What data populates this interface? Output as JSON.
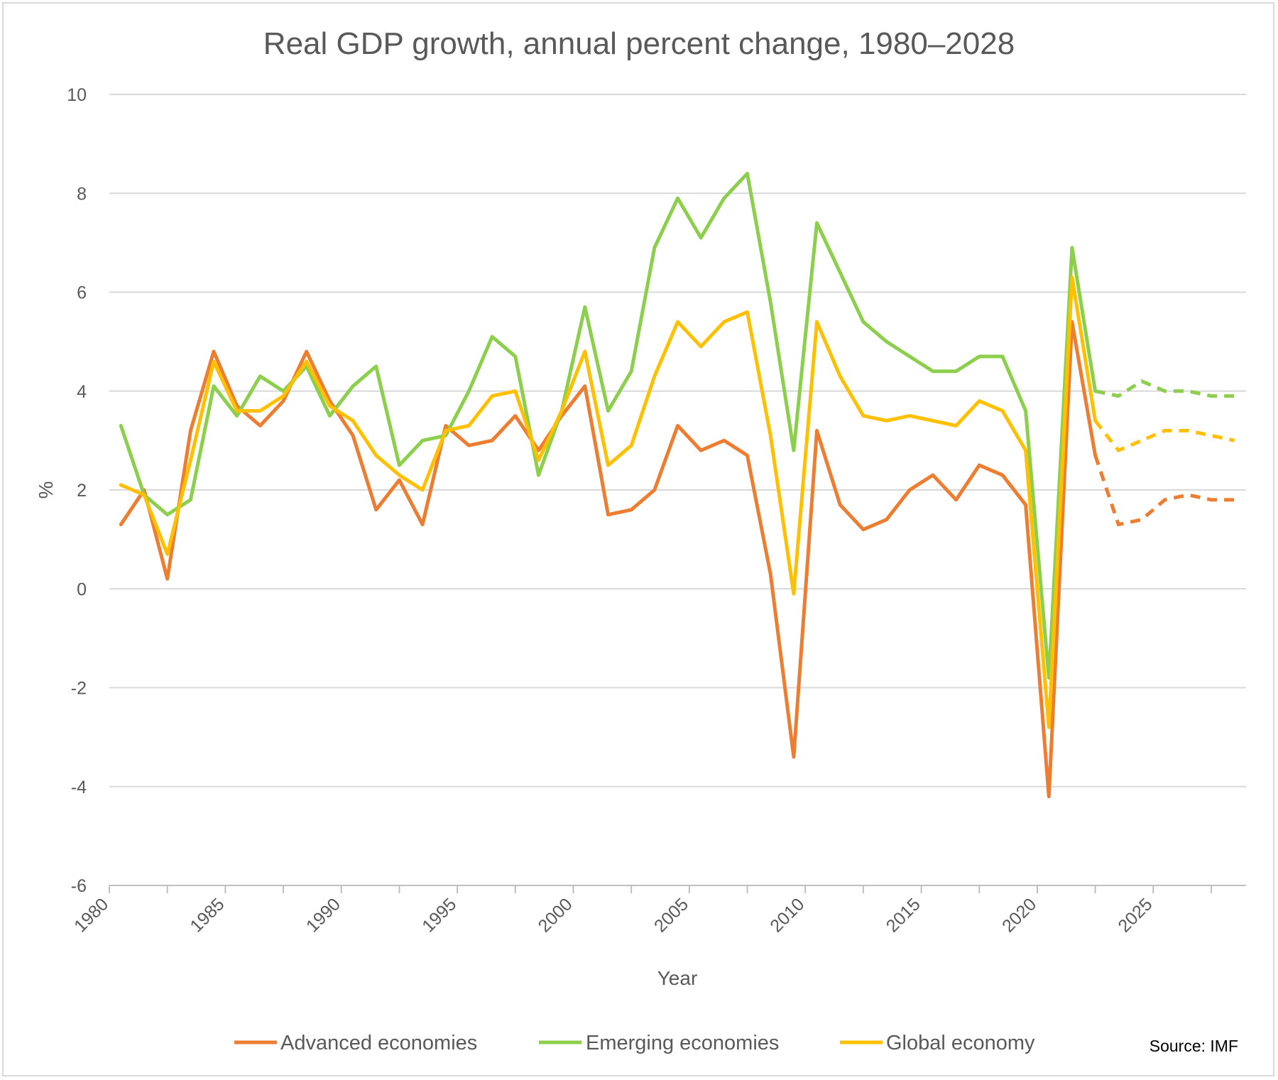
{
  "chart_data": {
    "type": "line",
    "title": "Real GDP growth, annual percent change, 1980–2028",
    "xlabel": "Year",
    "ylabel": "%",
    "xlim": [
      1980,
      2029
    ],
    "ylim": [
      -6,
      10
    ],
    "yticks": [
      10,
      8,
      6,
      4,
      2,
      0,
      -2,
      -4,
      -6
    ],
    "xtick_labels": [
      "1980",
      "1985",
      "1990",
      "1995",
      "2000",
      "2005",
      "2010",
      "2015",
      "2020",
      "2025"
    ],
    "grid": "horizontal",
    "legend_position": "bottom",
    "source": "Source: IMF",
    "forecast_from_year": 2022,
    "x": [
      1980,
      1981,
      1982,
      1983,
      1984,
      1985,
      1986,
      1987,
      1988,
      1989,
      1990,
      1991,
      1992,
      1993,
      1994,
      1995,
      1996,
      1997,
      1998,
      1999,
      2000,
      2001,
      2002,
      2003,
      2004,
      2005,
      2006,
      2007,
      2008,
      2009,
      2010,
      2011,
      2012,
      2013,
      2014,
      2015,
      2016,
      2017,
      2018,
      2019,
      2020,
      2021,
      2022,
      2023,
      2024,
      2025,
      2026,
      2027,
      2028
    ],
    "series": [
      {
        "name": "Advanced economies",
        "color": "#ed7d31",
        "values": [
          1.3,
          2.0,
          0.2,
          3.2,
          4.8,
          3.7,
          3.3,
          3.8,
          4.8,
          3.8,
          3.1,
          1.6,
          2.2,
          1.3,
          3.3,
          2.9,
          3.0,
          3.5,
          2.8,
          3.5,
          4.1,
          1.5,
          1.6,
          2.0,
          3.3,
          2.8,
          3.0,
          2.7,
          0.3,
          -3.4,
          3.2,
          1.7,
          1.2,
          1.4,
          2.0,
          2.3,
          1.8,
          2.5,
          2.3,
          1.7,
          -4.2,
          5.4,
          2.7,
          1.3,
          1.4,
          1.8,
          1.9,
          1.8,
          1.8
        ]
      },
      {
        "name": "Emerging economies",
        "color": "#8ccf4d",
        "values": [
          3.3,
          1.9,
          1.5,
          1.8,
          4.1,
          3.5,
          4.3,
          4.0,
          4.5,
          3.5,
          4.1,
          4.5,
          2.5,
          3.0,
          3.1,
          4.0,
          5.1,
          4.7,
          2.3,
          3.6,
          5.7,
          3.6,
          4.4,
          6.9,
          7.9,
          7.1,
          7.9,
          8.4,
          5.8,
          2.8,
          7.4,
          6.4,
          5.4,
          5.0,
          4.7,
          4.4,
          4.4,
          4.7,
          4.7,
          3.6,
          -1.8,
          6.9,
          4.0,
          3.9,
          4.2,
          4.0,
          4.0,
          3.9,
          3.9
        ]
      },
      {
        "name": "Global economy",
        "color": "#ffc000",
        "values": [
          2.1,
          1.9,
          0.7,
          2.6,
          4.6,
          3.6,
          3.6,
          3.9,
          4.6,
          3.7,
          3.4,
          2.7,
          2.3,
          2.0,
          3.2,
          3.3,
          3.9,
          4.0,
          2.6,
          3.6,
          4.8,
          2.5,
          2.9,
          4.3,
          5.4,
          4.9,
          5.4,
          5.6,
          3.1,
          -0.1,
          5.4,
          4.3,
          3.5,
          3.4,
          3.5,
          3.4,
          3.3,
          3.8,
          3.6,
          2.8,
          -2.8,
          6.3,
          3.4,
          2.8,
          3.0,
          3.2,
          3.2,
          3.1,
          3.0
        ]
      }
    ]
  }
}
